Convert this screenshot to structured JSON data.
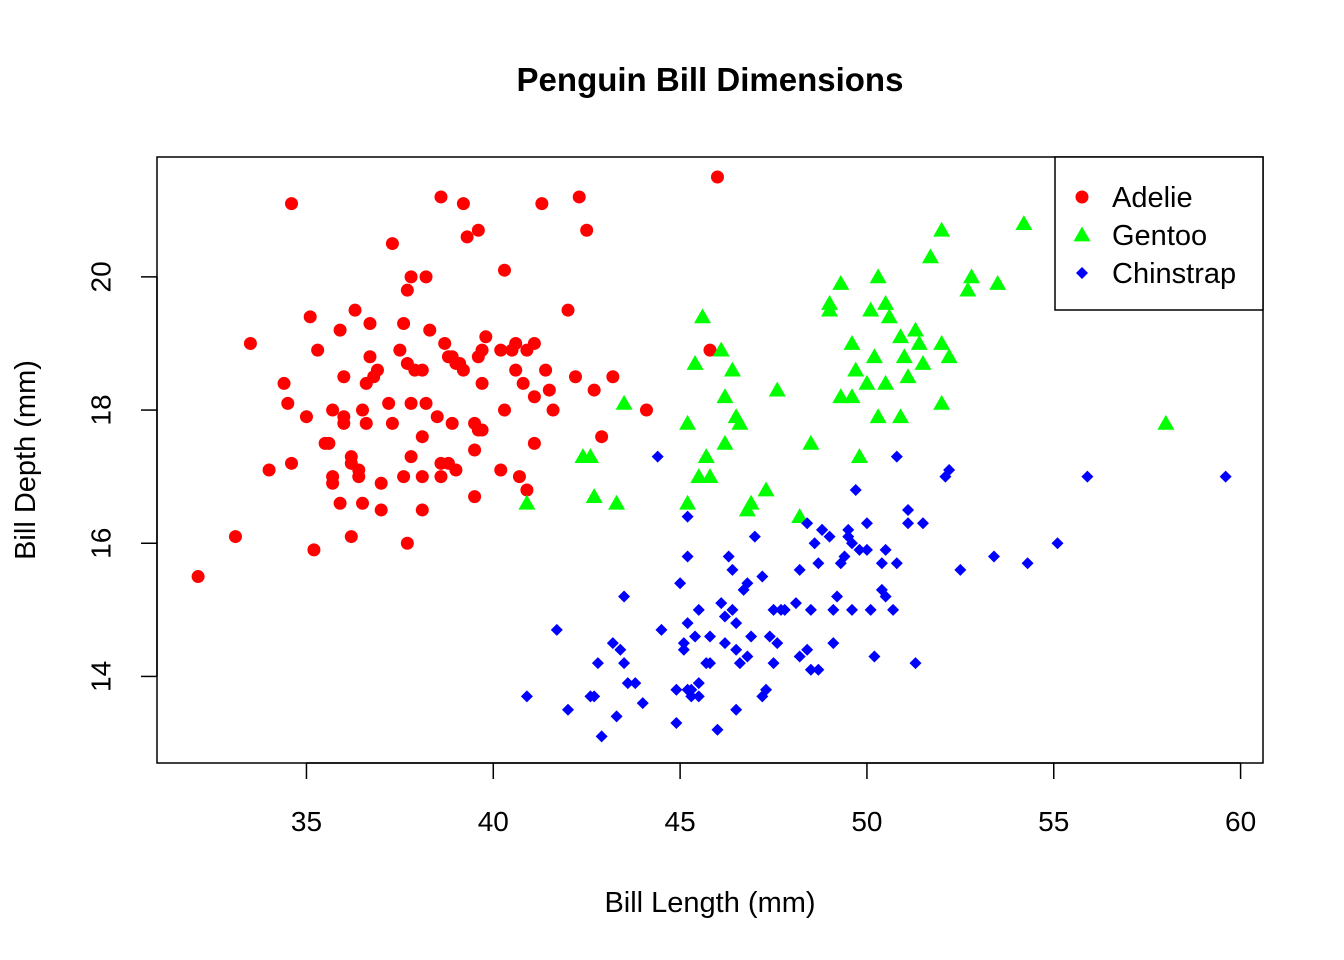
{
  "chart_data": {
    "type": "scatter",
    "title": "Penguin Bill Dimensions",
    "xlabel": "Bill Length (mm)",
    "ylabel": "Bill Depth (mm)",
    "xlim": [
      31.0,
      60.6
    ],
    "ylim": [
      12.7,
      21.8
    ],
    "xticks": [
      35,
      40,
      45,
      50,
      55,
      60
    ],
    "yticks": [
      14,
      16,
      18,
      20
    ],
    "grid": false,
    "legend_position": "top-right",
    "series": [
      {
        "name": "Adelie",
        "marker": "circle",
        "color": "#ff0000",
        "points": [
          [
            32.1,
            15.5
          ],
          [
            33.1,
            16.1
          ],
          [
            33.5,
            19.0
          ],
          [
            34.0,
            17.1
          ],
          [
            34.4,
            18.4
          ],
          [
            34.5,
            18.1
          ],
          [
            34.6,
            21.1
          ],
          [
            34.6,
            17.2
          ],
          [
            35.0,
            17.9
          ],
          [
            35.1,
            19.4
          ],
          [
            35.2,
            15.9
          ],
          [
            35.3,
            18.9
          ],
          [
            35.5,
            17.5
          ],
          [
            35.6,
            17.5
          ],
          [
            35.7,
            16.9
          ],
          [
            35.7,
            17.0
          ],
          [
            35.7,
            18.0
          ],
          [
            35.9,
            19.2
          ],
          [
            35.9,
            16.6
          ],
          [
            36.0,
            17.8
          ],
          [
            36.0,
            18.5
          ],
          [
            36.0,
            17.9
          ],
          [
            36.2,
            16.1
          ],
          [
            36.2,
            17.3
          ],
          [
            36.2,
            17.2
          ],
          [
            36.3,
            19.5
          ],
          [
            36.4,
            17.1
          ],
          [
            36.4,
            17.0
          ],
          [
            36.5,
            16.6
          ],
          [
            36.5,
            18.0
          ],
          [
            36.6,
            18.4
          ],
          [
            36.6,
            17.8
          ],
          [
            36.7,
            19.3
          ],
          [
            36.7,
            18.8
          ],
          [
            36.8,
            18.5
          ],
          [
            36.9,
            18.6
          ],
          [
            37.0,
            16.9
          ],
          [
            37.0,
            16.5
          ],
          [
            37.2,
            18.1
          ],
          [
            37.3,
            20.5
          ],
          [
            37.3,
            17.8
          ],
          [
            37.5,
            18.9
          ],
          [
            37.6,
            17.0
          ],
          [
            37.6,
            19.3
          ],
          [
            37.7,
            18.7
          ],
          [
            37.7,
            16.0
          ],
          [
            37.7,
            19.8
          ],
          [
            37.8,
            18.1
          ],
          [
            37.8,
            17.3
          ],
          [
            37.8,
            20.0
          ],
          [
            37.9,
            18.6
          ],
          [
            38.1,
            18.6
          ],
          [
            38.1,
            17.0
          ],
          [
            38.1,
            16.5
          ],
          [
            38.1,
            17.6
          ],
          [
            38.2,
            20.0
          ],
          [
            38.2,
            18.1
          ],
          [
            38.3,
            19.2
          ],
          [
            38.5,
            17.9
          ],
          [
            38.6,
            21.2
          ],
          [
            38.6,
            17.2
          ],
          [
            38.6,
            17.0
          ],
          [
            38.7,
            19.0
          ],
          [
            38.8,
            17.2
          ],
          [
            38.8,
            18.8
          ],
          [
            38.9,
            17.8
          ],
          [
            38.9,
            18.8
          ],
          [
            39.0,
            17.1
          ],
          [
            39.0,
            18.7
          ],
          [
            39.1,
            18.7
          ],
          [
            39.2,
            21.1
          ],
          [
            39.2,
            18.6
          ],
          [
            39.3,
            20.6
          ],
          [
            39.5,
            17.4
          ],
          [
            39.5,
            16.7
          ],
          [
            39.5,
            17.8
          ],
          [
            39.6,
            17.7
          ],
          [
            39.6,
            20.7
          ],
          [
            39.6,
            18.8
          ],
          [
            39.7,
            18.4
          ],
          [
            39.7,
            17.7
          ],
          [
            39.7,
            18.9
          ],
          [
            39.8,
            19.1
          ],
          [
            40.2,
            18.9
          ],
          [
            40.2,
            17.1
          ],
          [
            40.3,
            18.0
          ],
          [
            40.3,
            20.1
          ],
          [
            40.5,
            18.9
          ],
          [
            40.6,
            18.6
          ],
          [
            40.6,
            19.0
          ],
          [
            40.7,
            17.0
          ],
          [
            40.8,
            18.4
          ],
          [
            40.9,
            16.8
          ],
          [
            40.9,
            18.9
          ],
          [
            41.1,
            17.5
          ],
          [
            41.1,
            18.2
          ],
          [
            41.1,
            19.0
          ],
          [
            41.3,
            21.1
          ],
          [
            41.4,
            18.6
          ],
          [
            41.5,
            18.3
          ],
          [
            41.6,
            18.0
          ],
          [
            42.0,
            19.5
          ],
          [
            42.2,
            18.5
          ],
          [
            42.3,
            21.2
          ],
          [
            42.5,
            20.7
          ],
          [
            42.7,
            18.3
          ],
          [
            42.9,
            17.6
          ],
          [
            43.2,
            18.5
          ],
          [
            44.1,
            18.0
          ],
          [
            45.8,
            18.9
          ],
          [
            46.0,
            21.5
          ]
        ]
      },
      {
        "name": "Gentoo",
        "marker": "triangle",
        "color": "#00ff00",
        "points": [
          [
            40.9,
            16.6
          ],
          [
            42.4,
            17.3
          ],
          [
            42.6,
            17.3
          ],
          [
            42.7,
            16.7
          ],
          [
            43.3,
            16.6
          ],
          [
            43.5,
            18.1
          ],
          [
            45.2,
            17.8
          ],
          [
            45.2,
            16.6
          ],
          [
            45.4,
            18.7
          ],
          [
            45.5,
            17.0
          ],
          [
            45.6,
            19.4
          ],
          [
            45.7,
            17.3
          ],
          [
            45.8,
            17.0
          ],
          [
            46.1,
            18.9
          ],
          [
            46.2,
            18.2
          ],
          [
            46.2,
            17.5
          ],
          [
            46.4,
            18.6
          ],
          [
            46.5,
            17.9
          ],
          [
            46.6,
            17.8
          ],
          [
            46.8,
            16.5
          ],
          [
            46.9,
            16.6
          ],
          [
            47.3,
            16.8
          ],
          [
            47.6,
            18.3
          ],
          [
            48.2,
            16.4
          ],
          [
            48.5,
            17.5
          ],
          [
            49.0,
            19.6
          ],
          [
            49.0,
            19.5
          ],
          [
            49.3,
            18.2
          ],
          [
            49.3,
            19.9
          ],
          [
            49.6,
            18.2
          ],
          [
            49.6,
            19.0
          ],
          [
            49.7,
            18.6
          ],
          [
            49.8,
            17.3
          ],
          [
            50.1,
            19.5
          ],
          [
            50.2,
            18.8
          ],
          [
            50.3,
            17.9
          ],
          [
            50.3,
            20.0
          ],
          [
            50.5,
            18.4
          ],
          [
            50.5,
            19.6
          ],
          [
            50.6,
            19.4
          ],
          [
            50.9,
            19.1
          ],
          [
            51.0,
            18.8
          ],
          [
            51.3,
            19.2
          ],
          [
            51.4,
            19.0
          ],
          [
            51.5,
            18.7
          ],
          [
            51.7,
            20.3
          ],
          [
            52.0,
            18.1
          ],
          [
            52.0,
            20.7
          ],
          [
            52.0,
            19.0
          ],
          [
            52.2,
            18.8
          ],
          [
            52.7,
            19.8
          ],
          [
            52.8,
            20.0
          ],
          [
            53.5,
            19.9
          ],
          [
            54.2,
            20.8
          ],
          [
            58.0,
            17.8
          ],
          [
            50.9,
            17.9
          ],
          [
            51.1,
            18.5
          ],
          [
            50.0,
            18.4
          ]
        ]
      },
      {
        "name": "Chinstrap",
        "marker": "diamond",
        "color": "#0000ff",
        "points": [
          [
            40.9,
            13.7
          ],
          [
            41.7,
            14.7
          ],
          [
            42.0,
            13.5
          ],
          [
            42.6,
            13.7
          ],
          [
            42.7,
            13.7
          ],
          [
            42.8,
            14.2
          ],
          [
            42.9,
            13.1
          ],
          [
            43.2,
            14.5
          ],
          [
            43.3,
            13.4
          ],
          [
            43.4,
            14.4
          ],
          [
            43.5,
            14.2
          ],
          [
            43.5,
            15.2
          ],
          [
            43.6,
            13.9
          ],
          [
            43.8,
            13.9
          ],
          [
            44.0,
            13.6
          ],
          [
            44.4,
            17.3
          ],
          [
            44.5,
            14.7
          ],
          [
            44.9,
            13.3
          ],
          [
            44.9,
            13.8
          ],
          [
            45.0,
            15.4
          ],
          [
            45.1,
            14.5
          ],
          [
            45.1,
            14.4
          ],
          [
            45.2,
            13.8
          ],
          [
            45.2,
            14.8
          ],
          [
            45.2,
            15.8
          ],
          [
            45.2,
            16.4
          ],
          [
            45.3,
            13.7
          ],
          [
            45.3,
            13.8
          ],
          [
            45.4,
            14.6
          ],
          [
            45.5,
            13.7
          ],
          [
            45.5,
            15.0
          ],
          [
            45.5,
            13.9
          ],
          [
            45.7,
            14.2
          ],
          [
            45.8,
            14.6
          ],
          [
            45.8,
            14.2
          ],
          [
            46.0,
            13.2
          ],
          [
            46.1,
            15.1
          ],
          [
            46.2,
            14.9
          ],
          [
            46.2,
            14.5
          ],
          [
            46.3,
            15.8
          ],
          [
            46.4,
            15.6
          ],
          [
            46.4,
            15.0
          ],
          [
            46.5,
            14.4
          ],
          [
            46.5,
            14.8
          ],
          [
            46.5,
            13.5
          ],
          [
            46.6,
            14.2
          ],
          [
            46.7,
            15.3
          ],
          [
            46.8,
            14.3
          ],
          [
            46.8,
            15.4
          ],
          [
            46.9,
            14.6
          ],
          [
            47.0,
            16.1
          ],
          [
            47.2,
            13.7
          ],
          [
            47.2,
            15.5
          ],
          [
            47.3,
            13.8
          ],
          [
            47.4,
            14.6
          ],
          [
            47.5,
            14.2
          ],
          [
            47.5,
            15.0
          ],
          [
            47.6,
            14.5
          ],
          [
            47.7,
            15.0
          ],
          [
            47.8,
            15.0
          ],
          [
            48.1,
            15.1
          ],
          [
            48.2,
            15.6
          ],
          [
            48.2,
            14.3
          ],
          [
            48.4,
            14.4
          ],
          [
            48.4,
            16.3
          ],
          [
            48.5,
            14.1
          ],
          [
            48.5,
            15.0
          ],
          [
            48.6,
            16.0
          ],
          [
            48.7,
            14.1
          ],
          [
            48.7,
            15.7
          ],
          [
            48.8,
            16.2
          ],
          [
            49.0,
            16.1
          ],
          [
            49.1,
            14.5
          ],
          [
            49.1,
            15.0
          ],
          [
            49.2,
            15.2
          ],
          [
            49.4,
            15.8
          ],
          [
            49.5,
            16.1
          ],
          [
            49.5,
            16.2
          ],
          [
            49.6,
            15.0
          ],
          [
            49.6,
            16.0
          ],
          [
            49.7,
            16.8
          ],
          [
            49.8,
            15.9
          ],
          [
            50.0,
            15.9
          ],
          [
            50.0,
            16.3
          ],
          [
            50.1,
            15.0
          ],
          [
            50.2,
            14.3
          ],
          [
            50.4,
            15.7
          ],
          [
            50.4,
            15.3
          ],
          [
            50.5,
            15.2
          ],
          [
            50.5,
            15.9
          ],
          [
            50.7,
            15.0
          ],
          [
            50.8,
            15.7
          ],
          [
            50.8,
            17.3
          ],
          [
            51.1,
            16.3
          ],
          [
            51.1,
            16.5
          ],
          [
            51.3,
            14.2
          ],
          [
            51.5,
            16.3
          ],
          [
            52.1,
            17.0
          ],
          [
            52.2,
            17.1
          ],
          [
            52.5,
            15.6
          ],
          [
            53.4,
            15.8
          ],
          [
            54.3,
            15.7
          ],
          [
            55.1,
            16.0
          ],
          [
            55.9,
            17.0
          ],
          [
            59.6,
            17.0
          ],
          [
            48.8,
            16.2
          ],
          [
            49.3,
            15.7
          ]
        ]
      }
    ]
  }
}
